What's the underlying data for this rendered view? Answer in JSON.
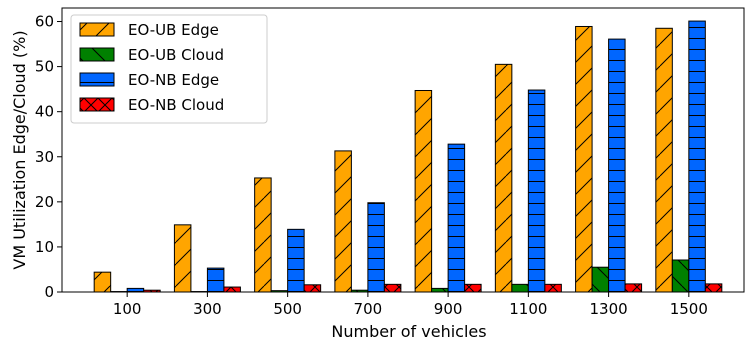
{
  "chart_data": {
    "type": "bar",
    "xlabel": "Number of vehicles",
    "ylabel": "VM Utilization Edge/Cloud (%)",
    "categories": [
      "100",
      "300",
      "500",
      "700",
      "900",
      "1100",
      "1300",
      "1500"
    ],
    "ylim": [
      0,
      63
    ],
    "yticks": [
      0,
      10,
      20,
      30,
      40,
      50,
      60
    ],
    "grid": false,
    "legend_position": "top-left",
    "series": [
      {
        "name": "EO-UB Edge",
        "color": "#FFA500",
        "hatch": "diagonal",
        "values": [
          4.4,
          14.9,
          25.3,
          31.3,
          44.7,
          50.5,
          58.9,
          58.5
        ]
      },
      {
        "name": "EO-UB Cloud",
        "color": "#008000",
        "hatch": "reverse-diagonal",
        "values": [
          0.1,
          0.1,
          0.3,
          0.4,
          0.8,
          1.7,
          5.5,
          7.1
        ]
      },
      {
        "name": "EO-NB Edge",
        "color": "#0066FF",
        "hatch": "horizontal",
        "values": [
          0.8,
          5.3,
          13.9,
          19.8,
          32.8,
          44.8,
          56.1,
          60.1
        ]
      },
      {
        "name": "EO-NB Cloud",
        "color": "#FF0000",
        "hatch": "cross-diagonal",
        "values": [
          0.4,
          1.1,
          1.6,
          1.7,
          1.7,
          1.7,
          1.8,
          1.8
        ]
      }
    ]
  }
}
